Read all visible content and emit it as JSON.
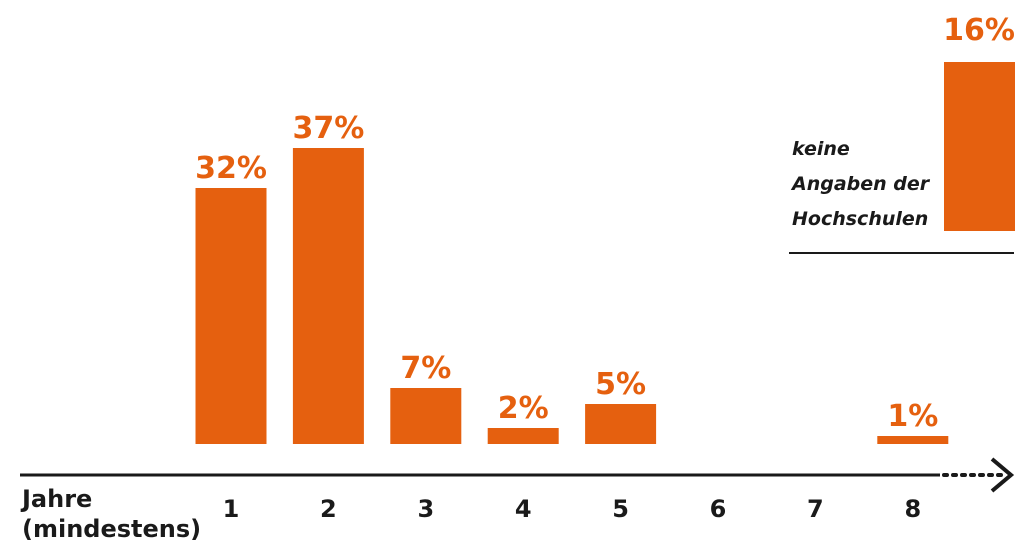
{
  "chart_data": {
    "type": "bar",
    "xlabel_line1": "Jahre",
    "xlabel_line2": "(mindestens)",
    "categories": [
      "1",
      "2",
      "3",
      "4",
      "5",
      "6",
      "7",
      "8"
    ],
    "values": [
      32,
      37,
      7,
      2,
      5,
      null,
      null,
      1
    ],
    "data_labels": [
      "32%",
      "37%",
      "7%",
      "2%",
      "5%",
      "",
      "",
      "1%"
    ],
    "no_answer": {
      "label_lines": [
        "keine",
        "Angaben der",
        "Hochschulen"
      ],
      "value": 16,
      "data_label": "16%"
    },
    "ylim": [
      0,
      40
    ],
    "grid": false,
    "legend": "none"
  },
  "colors": {
    "bar": "#e5600f",
    "label": "#e5600f",
    "axis": "#1a1a1a"
  }
}
